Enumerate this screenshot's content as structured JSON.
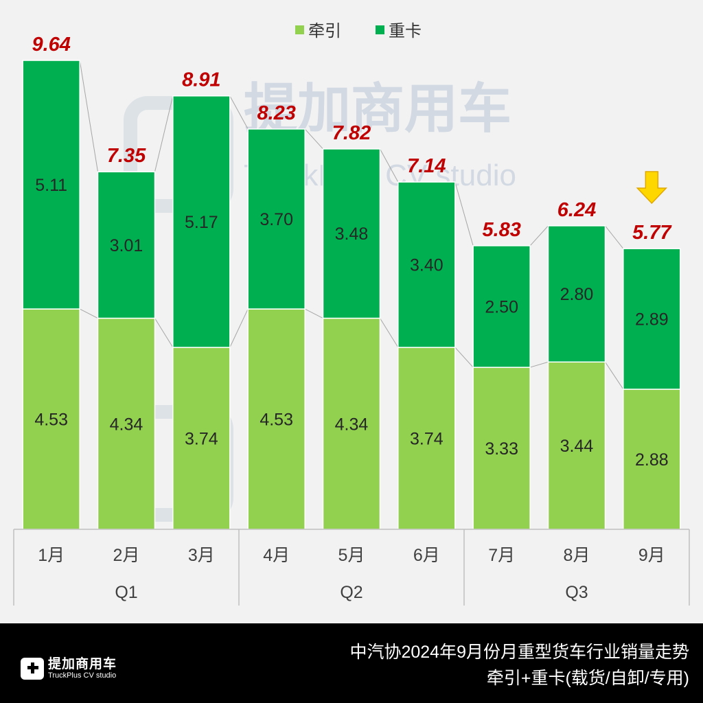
{
  "chart_data": {
    "type": "bar",
    "stacked": true,
    "categories": [
      "1月",
      "2月",
      "3月",
      "4月",
      "5月",
      "6月",
      "7月",
      "8月",
      "9月"
    ],
    "groups": [
      {
        "label": "Q1",
        "count": 3
      },
      {
        "label": "Q2",
        "count": 3
      },
      {
        "label": "Q3",
        "count": 3
      }
    ],
    "series": [
      {
        "name": "牵引",
        "color": "#92d050",
        "values": [
          4.53,
          4.34,
          3.74,
          4.53,
          4.34,
          3.74,
          3.33,
          3.44,
          2.88
        ]
      },
      {
        "name": "重卡",
        "color": "#00b050",
        "values": [
          5.11,
          3.01,
          5.17,
          3.7,
          3.48,
          3.4,
          2.5,
          2.8,
          2.89
        ]
      }
    ],
    "totals": [
      "9.64",
      "7.35",
      "8.91",
      "8.23",
      "7.82",
      "7.14",
      "5.83",
      "6.24",
      "5.77"
    ],
    "series_labels": [
      [
        "4.53",
        "4.34",
        "3.74",
        "4.53",
        "4.34",
        "3.74",
        "3.33",
        "3.44",
        "2.88"
      ],
      [
        "5.11",
        "3.01",
        "5.17",
        "3.70",
        "3.48",
        "3.40",
        "2.50",
        "2.80",
        "2.89"
      ]
    ],
    "ylim": [
      0,
      9.64
    ],
    "legend": "top-center",
    "highlight_index": 8,
    "total_label_color": "#c00000",
    "arrow_color": "#ffd700"
  },
  "watermark": {
    "cn": "提加商用车",
    "en": "TruckPlus CV studio"
  },
  "footer": {
    "logo_cn": "提加商用车",
    "logo_en": "TruckPlus CV studio",
    "title_line1": "中汽协2024年9月份月重型货车行业销量走势",
    "title_line2": "牵引+重卡(载货/自卸/专用)"
  }
}
